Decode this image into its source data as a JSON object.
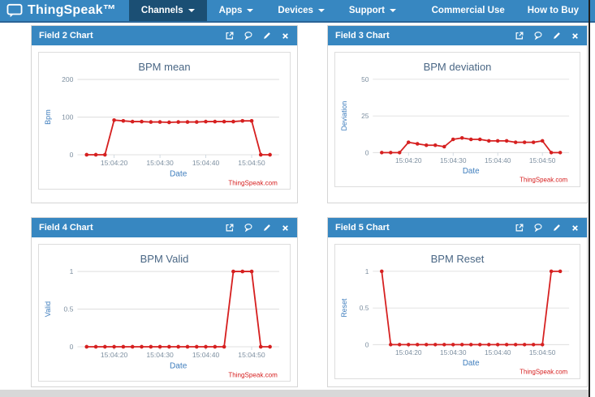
{
  "nav": {
    "brand": "ThingSpeak™",
    "items": [
      {
        "label": "Channels",
        "active": true
      },
      {
        "label": "Apps",
        "active": false
      },
      {
        "label": "Devices",
        "active": false
      },
      {
        "label": "Support",
        "active": false
      }
    ],
    "links": [
      {
        "label": "Commercial Use"
      },
      {
        "label": "How to Buy"
      }
    ]
  },
  "panels": [
    {
      "title": "Field 2 Chart",
      "icons": [
        "export-icon",
        "comment-icon",
        "edit-icon",
        "close-icon"
      ]
    },
    {
      "title": "Field 3 Chart",
      "icons": [
        "export-icon",
        "comment-icon",
        "edit-icon",
        "close-icon"
      ]
    },
    {
      "title": "Field 4 Chart",
      "icons": [
        "export-icon",
        "comment-icon",
        "edit-icon",
        "close-icon"
      ]
    },
    {
      "title": "Field 5 Chart",
      "icons": [
        "export-icon",
        "comment-icon",
        "edit-icon",
        "close-icon"
      ]
    }
  ],
  "chart_data": [
    {
      "type": "line",
      "title": "BPM mean",
      "xlabel": "Date",
      "ylabel": "Bpm",
      "credits": "ThingSpeak.com",
      "x": [
        "15:04:14",
        "15:04:16",
        "15:04:18",
        "15:04:20",
        "15:04:22",
        "15:04:24",
        "15:04:26",
        "15:04:28",
        "15:04:30",
        "15:04:32",
        "15:04:34",
        "15:04:36",
        "15:04:38",
        "15:04:40",
        "15:04:42",
        "15:04:44",
        "15:04:46",
        "15:04:48",
        "15:04:50",
        "15:04:52",
        "15:04:54"
      ],
      "values": [
        0,
        0,
        0,
        92,
        90,
        88,
        88,
        87,
        87,
        86,
        87,
        87,
        87,
        88,
        88,
        88,
        88,
        90,
        90,
        0,
        0
      ],
      "ylim": [
        0,
        200
      ],
      "yticks": [
        0,
        100,
        200
      ],
      "xticks": [
        "15:04:20",
        "15:04:30",
        "15:04:40",
        "15:04:50"
      ]
    },
    {
      "type": "line",
      "title": "BPM deviation",
      "xlabel": "Date",
      "ylabel": "Deviation",
      "credits": "ThingSpeak.com",
      "x": [
        "15:04:14",
        "15:04:16",
        "15:04:18",
        "15:04:20",
        "15:04:22",
        "15:04:24",
        "15:04:26",
        "15:04:28",
        "15:04:30",
        "15:04:32",
        "15:04:34",
        "15:04:36",
        "15:04:38",
        "15:04:40",
        "15:04:42",
        "15:04:44",
        "15:04:46",
        "15:04:48",
        "15:04:50",
        "15:04:52",
        "15:04:54"
      ],
      "values": [
        0,
        0,
        0,
        7,
        6,
        5,
        5,
        4,
        9,
        10,
        9,
        9,
        8,
        8,
        8,
        7,
        7,
        7,
        8,
        0,
        0
      ],
      "ylim": [
        0,
        50
      ],
      "yticks": [
        0,
        25,
        50
      ],
      "xticks": [
        "15:04:20",
        "15:04:30",
        "15:04:40",
        "15:04:50"
      ]
    },
    {
      "type": "line",
      "title": "BPM Valid",
      "xlabel": "Date",
      "ylabel": "Valid",
      "credits": "ThingSpeak.com",
      "x": [
        "15:04:14",
        "15:04:16",
        "15:04:18",
        "15:04:20",
        "15:04:22",
        "15:04:24",
        "15:04:26",
        "15:04:28",
        "15:04:30",
        "15:04:32",
        "15:04:34",
        "15:04:36",
        "15:04:38",
        "15:04:40",
        "15:04:42",
        "15:04:44",
        "15:04:46",
        "15:04:48",
        "15:04:50",
        "15:04:52",
        "15:04:54"
      ],
      "values": [
        0,
        0,
        0,
        0,
        0,
        0,
        0,
        0,
        0,
        0,
        0,
        0,
        0,
        0,
        0,
        0,
        1,
        1,
        1,
        0,
        0
      ],
      "ylim": [
        0,
        1
      ],
      "yticks": [
        0,
        0.5,
        1
      ],
      "xticks": [
        "15:04:20",
        "15:04:30",
        "15:04:40",
        "15:04:50"
      ]
    },
    {
      "type": "line",
      "title": "BPM Reset",
      "xlabel": "Date",
      "ylabel": "Reset",
      "credits": "ThingSpeak.com",
      "x": [
        "15:04:14",
        "15:04:16",
        "15:04:18",
        "15:04:20",
        "15:04:22",
        "15:04:24",
        "15:04:26",
        "15:04:28",
        "15:04:30",
        "15:04:32",
        "15:04:34",
        "15:04:36",
        "15:04:38",
        "15:04:40",
        "15:04:42",
        "15:04:44",
        "15:04:46",
        "15:04:48",
        "15:04:50",
        "15:04:52",
        "15:04:54"
      ],
      "values": [
        1,
        0,
        0,
        0,
        0,
        0,
        0,
        0,
        0,
        0,
        0,
        0,
        0,
        0,
        0,
        0,
        0,
        0,
        0,
        1,
        1
      ],
      "ylim": [
        0,
        1
      ],
      "yticks": [
        0,
        0.5,
        1
      ],
      "xticks": [
        "15:04:20",
        "15:04:30",
        "15:04:40",
        "15:04:50"
      ]
    }
  ],
  "colors": {
    "nav_bg": "#3787c1",
    "nav_active_bg": "#1b4f74",
    "nav_border": "#2a6496",
    "panel_header_bg": "#3787c1",
    "line": "#d62020",
    "title": "#4a6785",
    "axis_label": "#3e7dbd",
    "tick": "#7d8fa0",
    "grid": "#d9d9d9",
    "credits": "#d62020"
  }
}
